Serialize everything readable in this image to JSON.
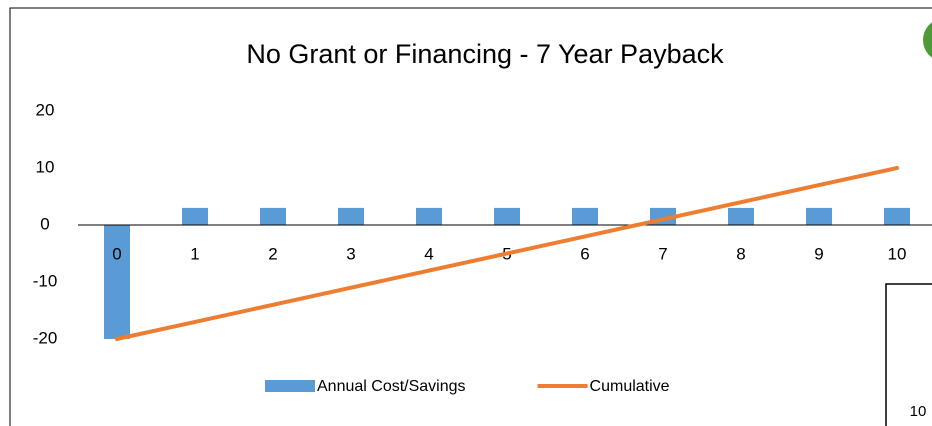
{
  "chart_data": {
    "type": "bar_line",
    "title": "No Grant or Financing - 7 Year Payback",
    "categories": [
      "0",
      "1",
      "2",
      "3",
      "4",
      "5",
      "6",
      "7",
      "8",
      "9",
      "10"
    ],
    "series": [
      {
        "name": "Annual Cost/Savings",
        "type": "bar",
        "color": "#5b9bd5",
        "values": [
          -20,
          3,
          3,
          3,
          3,
          3,
          3,
          3,
          3,
          3,
          3
        ]
      },
      {
        "name": "Cumulative",
        "type": "line",
        "color": "#ed7d31",
        "values": [
          -20,
          -17,
          -14,
          -11,
          -8,
          -5,
          -2,
          1,
          4,
          7,
          10
        ]
      }
    ],
    "ylim": [
      -20,
      20
    ],
    "yticks": [
      -20,
      -10,
      0,
      10,
      20
    ],
    "grid": false,
    "legend": "bottom"
  },
  "overlay": {
    "text": "10"
  }
}
